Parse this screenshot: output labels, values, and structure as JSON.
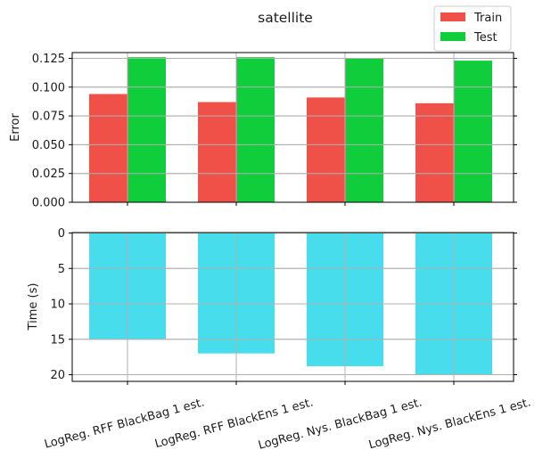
{
  "chart_data": [
    {
      "type": "bar",
      "title": "satellite",
      "ylabel": "Error",
      "xlabel": "",
      "categories": [
        "LogReg. RFF BlackBag 1 est.",
        "LogReg. RFF BlackEns 1 est.",
        "LogReg. Nys. BlackBag 1 est.",
        "LogReg. Nys. BlackEns 1 est."
      ],
      "series": [
        {
          "name": "Train",
          "color": "#ef5149",
          "values": [
            0.094,
            0.087,
            0.091,
            0.086
          ]
        },
        {
          "name": "Test",
          "color": "#0fcd3b",
          "values": [
            0.126,
            0.126,
            0.125,
            0.123
          ]
        }
      ],
      "ylim": [
        0,
        0.13
      ],
      "yticks": [
        "0.000",
        "0.025",
        "0.050",
        "0.075",
        "0.100",
        "0.125"
      ],
      "grid": true,
      "legend": "top-right"
    },
    {
      "type": "bar",
      "title": "",
      "ylabel": "Time (s)",
      "xlabel": "",
      "categories": [
        "LogReg. RFF BlackBag 1 est.",
        "LogReg. RFF BlackEns 1 est.",
        "LogReg. Nys. BlackBag 1 est.",
        "LogReg. Nys. BlackEns 1 est."
      ],
      "series": [
        {
          "color": "#48ddec",
          "values": [
            15.0,
            17.0,
            18.8,
            20.0
          ]
        }
      ],
      "ylim": [
        0,
        21
      ],
      "y_inverted": true,
      "yticks": [
        "0",
        "5",
        "10",
        "15",
        "20"
      ],
      "grid": true
    }
  ]
}
